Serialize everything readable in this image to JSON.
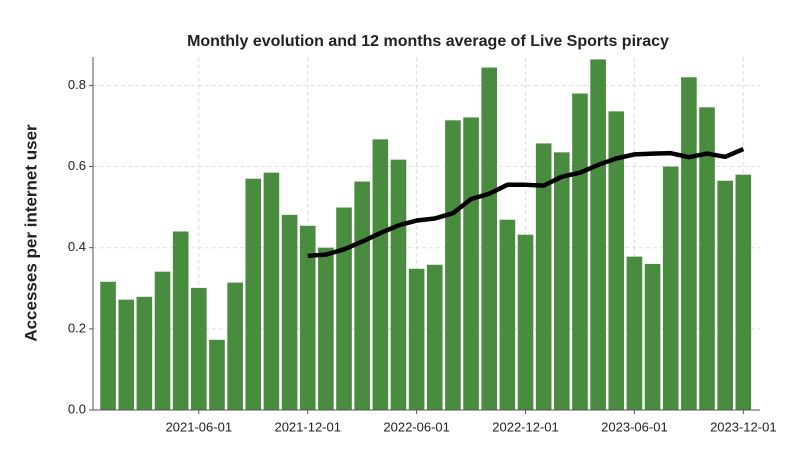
{
  "chart_data": {
    "type": "bar",
    "title": "Monthly evolution and 12 months average of Live Sports piracy",
    "y_label": "Accesses per internet user",
    "categories": [
      "2021-01-01",
      "2021-02-01",
      "2021-03-01",
      "2021-04-01",
      "2021-05-01",
      "2021-06-01",
      "2021-07-01",
      "2021-08-01",
      "2021-09-01",
      "2021-10-01",
      "2021-11-01",
      "2021-12-01",
      "2022-01-01",
      "2022-02-01",
      "2022-03-01",
      "2022-04-01",
      "2022-05-01",
      "2022-06-01",
      "2022-07-01",
      "2022-08-01",
      "2022-09-01",
      "2022-10-01",
      "2022-11-01",
      "2022-12-01",
      "2023-01-01",
      "2023-02-01",
      "2023-03-01",
      "2023-04-01",
      "2023-05-01",
      "2023-06-01",
      "2023-07-01",
      "2023-08-01",
      "2023-09-01",
      "2023-10-01",
      "2023-11-01",
      "2023-12-01"
    ],
    "series": [
      {
        "type": "bar",
        "color": "#4a8c3f",
        "values": [
          0.316,
          0.272,
          0.279,
          0.341,
          0.44,
          0.301,
          0.173,
          0.314,
          0.57,
          0.585,
          0.481,
          0.454,
          0.4,
          0.499,
          0.563,
          0.667,
          0.617,
          0.348,
          0.358,
          0.714,
          0.721,
          0.844,
          0.469,
          0.432,
          0.657,
          0.635,
          0.78,
          0.864,
          0.736,
          0.378,
          0.36,
          0.6,
          0.82,
          0.746,
          0.565,
          0.58
        ]
      },
      {
        "type": "line",
        "color": "#000000",
        "values": [
          null,
          null,
          null,
          null,
          null,
          null,
          null,
          null,
          null,
          null,
          null,
          0.38,
          0.383,
          0.396,
          0.415,
          0.436,
          0.455,
          0.467,
          0.472,
          0.485,
          0.52,
          0.533,
          0.555,
          0.555,
          0.553,
          0.575,
          0.585,
          0.604,
          0.62,
          0.63,
          0.632,
          0.633,
          0.623,
          0.632,
          0.624,
          0.643
        ]
      }
    ],
    "xticks": [
      "2021-06-01",
      "2021-12-01",
      "2022-06-01",
      "2022-12-01",
      "2023-06-01",
      "2023-12-01"
    ],
    "ylim": [
      0,
      0.87
    ],
    "yticks": [
      {
        "value": 0,
        "label": "0.0"
      },
      0.2,
      0.4,
      0.6,
      0.8
    ],
    "grid": true
  }
}
